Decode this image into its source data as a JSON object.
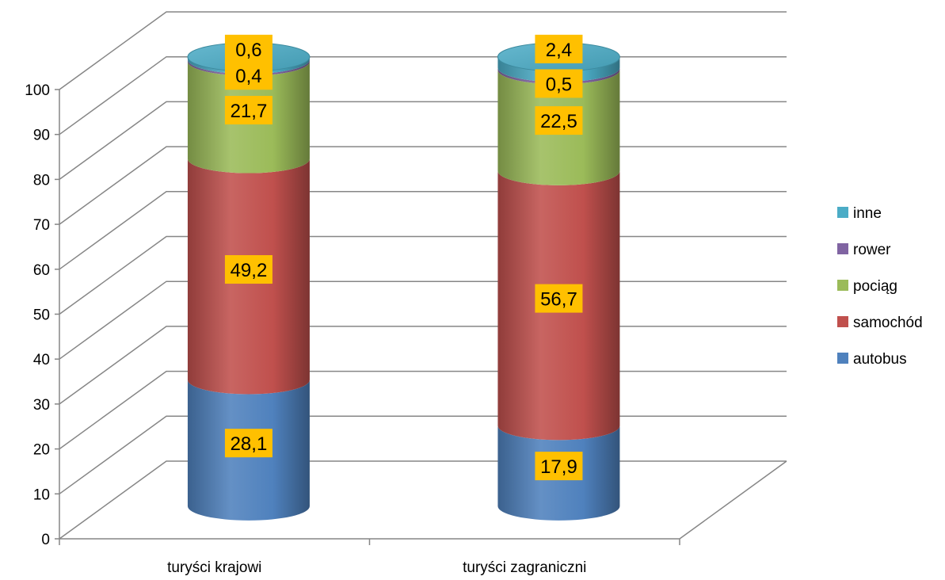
{
  "chart_data": {
    "type": "bar",
    "subtype": "stacked-100-cylinder-3d",
    "categories": [
      "turyści krajowi",
      "turyści zagraniczni"
    ],
    "series": [
      {
        "name": "autobus",
        "color": "#4f81bd",
        "values": [
          28.1,
          17.9
        ]
      },
      {
        "name": "samochód",
        "color": "#c0504d",
        "values": [
          49.2,
          56.7
        ]
      },
      {
        "name": "pociąg",
        "color": "#9bbb59",
        "values": [
          21.7,
          22.5
        ]
      },
      {
        "name": "rower",
        "color": "#8064a2",
        "values": [
          0.4,
          0.5
        ]
      },
      {
        "name": "inne",
        "color": "#4bacc6",
        "values": [
          0.6,
          2.4
        ]
      }
    ],
    "data_labels": [
      [
        "28,1",
        "17,9"
      ],
      [
        "49,2",
        "56,7"
      ],
      [
        "21,7",
        "22,5"
      ],
      [
        "0,4",
        "0,5"
      ],
      [
        "0,6",
        "2,4"
      ]
    ],
    "ylim": [
      0,
      100
    ],
    "yticks": [
      0,
      10,
      20,
      30,
      40,
      50,
      60,
      70,
      80,
      90,
      100
    ],
    "ytick_labels": [
      "0",
      "10",
      "20",
      "30",
      "40",
      "50",
      "60",
      "70",
      "80",
      "90",
      "100"
    ],
    "grid": true,
    "legend": "right",
    "label_box_color": "#ffc000"
  }
}
